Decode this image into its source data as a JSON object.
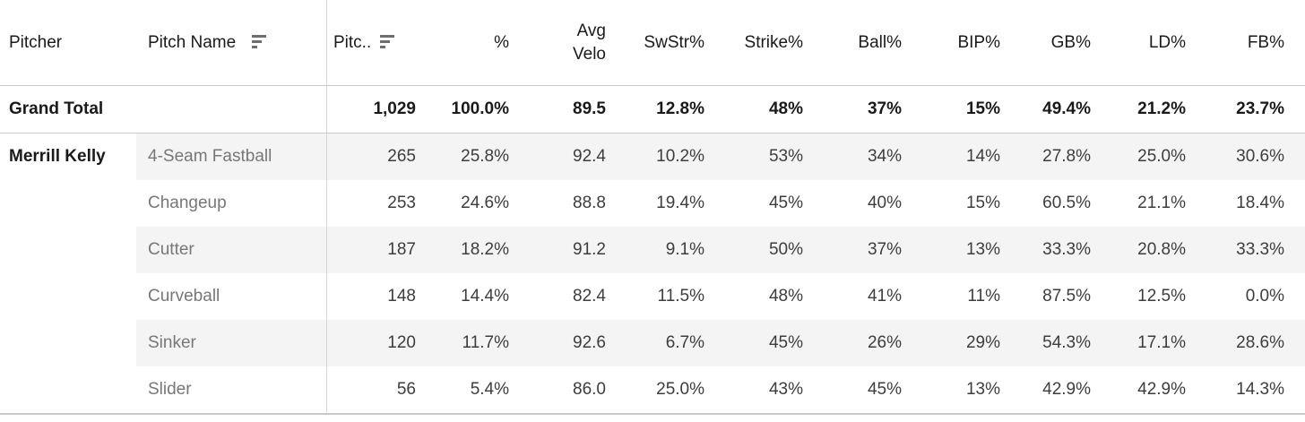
{
  "colors": {
    "banding": "#f4f4f4",
    "border": "#c9c9c9",
    "divider": "#d6d6d6",
    "header_text": "#1a1a1a",
    "data_text": "#3d3d3d",
    "dim_text": "#777777",
    "sort_icon": "#6e6e6e"
  },
  "header": {
    "pitcher": "Pitcher",
    "pitch_name": "Pitch Name",
    "metrics": [
      "Pitc..",
      "%",
      "Avg\nVelo",
      "SwStr%",
      "Strike%",
      "Ball%",
      "BIP%",
      "GB%",
      "LD%",
      "FB%"
    ]
  },
  "icons": {
    "pitch_name_sort": "sort-bars-descending",
    "pitches_sort": "sort-bars-descending"
  },
  "chart_data": {
    "type": "table",
    "title": "",
    "columns": [
      "Pitcher",
      "Pitch Name",
      "Pitc..",
      "%",
      "Avg Velo",
      "SwStr%",
      "Strike%",
      "Ball%",
      "BIP%",
      "GB%",
      "LD%",
      "FB%"
    ],
    "rows": [
      [
        "Grand Total",
        "",
        "1,029",
        "100.0%",
        "89.5",
        "12.8%",
        "48%",
        "37%",
        "15%",
        "49.4%",
        "21.2%",
        "23.7%"
      ],
      [
        "Merrill Kelly",
        "4-Seam Fastball",
        "265",
        "25.8%",
        "92.4",
        "10.2%",
        "53%",
        "34%",
        "14%",
        "27.8%",
        "25.0%",
        "30.6%"
      ],
      [
        "",
        "Changeup",
        "253",
        "24.6%",
        "88.8",
        "19.4%",
        "45%",
        "40%",
        "15%",
        "60.5%",
        "21.1%",
        "18.4%"
      ],
      [
        "",
        "Cutter",
        "187",
        "18.2%",
        "91.2",
        "9.1%",
        "50%",
        "37%",
        "13%",
        "33.3%",
        "20.8%",
        "33.3%"
      ],
      [
        "",
        "Curveball",
        "148",
        "14.4%",
        "82.4",
        "11.5%",
        "48%",
        "41%",
        "11%",
        "87.5%",
        "12.5%",
        "0.0%"
      ],
      [
        "",
        "Sinker",
        "120",
        "11.7%",
        "92.6",
        "6.7%",
        "45%",
        "26%",
        "29%",
        "54.3%",
        "17.1%",
        "28.6%"
      ],
      [
        "",
        "Slider",
        "56",
        "5.4%",
        "86.0",
        "25.0%",
        "43%",
        "45%",
        "13%",
        "42.9%",
        "42.9%",
        "14.3%"
      ]
    ],
    "layout": {
      "banded_rows": true,
      "totals_row_position": "top",
      "row_group": "Merrill Kelly"
    }
  }
}
